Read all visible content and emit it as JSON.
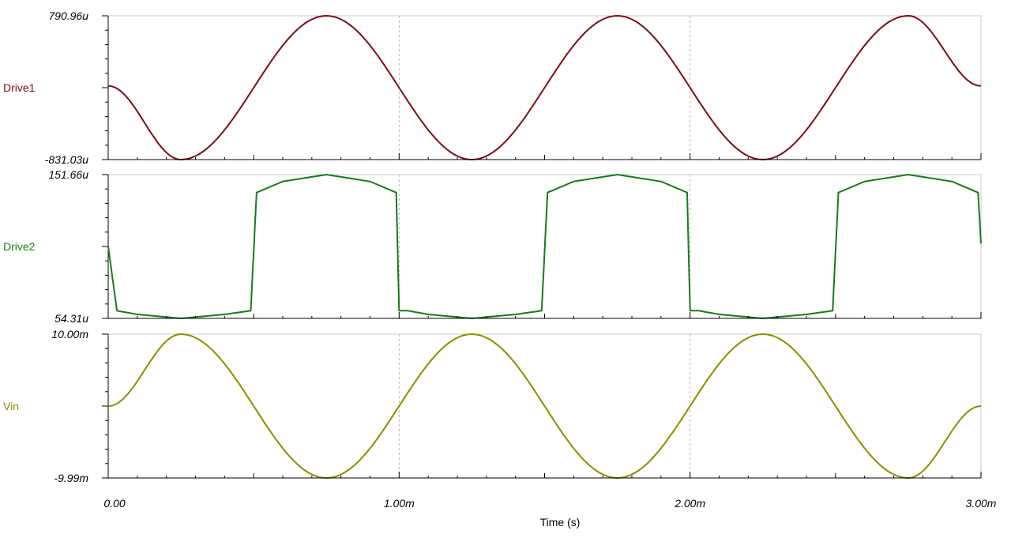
{
  "chart_data": {
    "type": "line",
    "xlabel": "Time (s)",
    "xlim": [
      0,
      0.003
    ],
    "x_ticks": [
      {
        "value": 0,
        "label": "0.00"
      },
      {
        "value": 0.001,
        "label": "1.00m"
      },
      {
        "value": 0.002,
        "label": "2.00m"
      },
      {
        "value": 0.003,
        "label": "3.00m"
      }
    ],
    "grid": "vertical dashed at major ticks",
    "series": [
      {
        "name": "Drive1",
        "color": "#7a0f14",
        "ylim": [
          -0.00083103,
          0.00079096
        ],
        "ylim_labels": [
          "-831.03u",
          "790.96u"
        ],
        "x": [
          0,
          0.00025,
          0.00075,
          0.00125,
          0.00175,
          0.00225,
          0.00275,
          0.003
        ],
        "values": [
          0.0,
          -0.00083103,
          0.00079096,
          -0.00083103,
          0.00079096,
          -0.00083103,
          0.00079096,
          0.0
        ]
      },
      {
        "name": "Drive2",
        "color": "#1a7a1a",
        "ylim": [
          5.431e-05,
          0.00015166
        ],
        "ylim_labels": [
          "54.31u",
          "151.66u"
        ],
        "x": [
          0,
          3e-05,
          0.0001,
          0.00025,
          0.0004,
          0.00049,
          0.00051,
          0.0006,
          0.00075,
          0.0009,
          0.00099,
          0.001,
          0.00103,
          0.0011,
          0.00125,
          0.0014,
          0.00149,
          0.00151,
          0.0016,
          0.00175,
          0.0019,
          0.00199,
          0.002,
          0.00203,
          0.0021,
          0.00225,
          0.0024,
          0.00249,
          0.00251,
          0.0026,
          0.00275,
          0.0029,
          0.00299,
          0.003
        ],
        "values": [
          0.000103,
          5.95e-05,
          5.7e-05,
          5.431e-05,
          5.7e-05,
          5.95e-05,
          0.0001395,
          0.000147,
          0.00015166,
          0.000147,
          0.0001395,
          5.95e-05,
          5.95e-05,
          5.7e-05,
          5.431e-05,
          5.7e-05,
          5.95e-05,
          0.0001395,
          0.000147,
          0.00015166,
          0.000147,
          0.0001395,
          5.95e-05,
          5.95e-05,
          5.7e-05,
          5.431e-05,
          5.7e-05,
          5.95e-05,
          0.0001395,
          0.000147,
          0.00015166,
          0.000147,
          0.0001395,
          0.000105
        ]
      },
      {
        "name": "Vin",
        "color": "#8c8c00",
        "ylim": [
          -0.00999,
          0.01
        ],
        "ylim_labels": [
          "-9.99m",
          "10.00m"
        ],
        "x": [
          0,
          0.00025,
          0.00075,
          0.00125,
          0.00175,
          0.00225,
          0.00275,
          0.003
        ],
        "values": [
          0,
          0.01,
          -0.00999,
          0.01,
          -0.00999,
          0.01,
          -0.00999,
          0
        ]
      }
    ]
  }
}
